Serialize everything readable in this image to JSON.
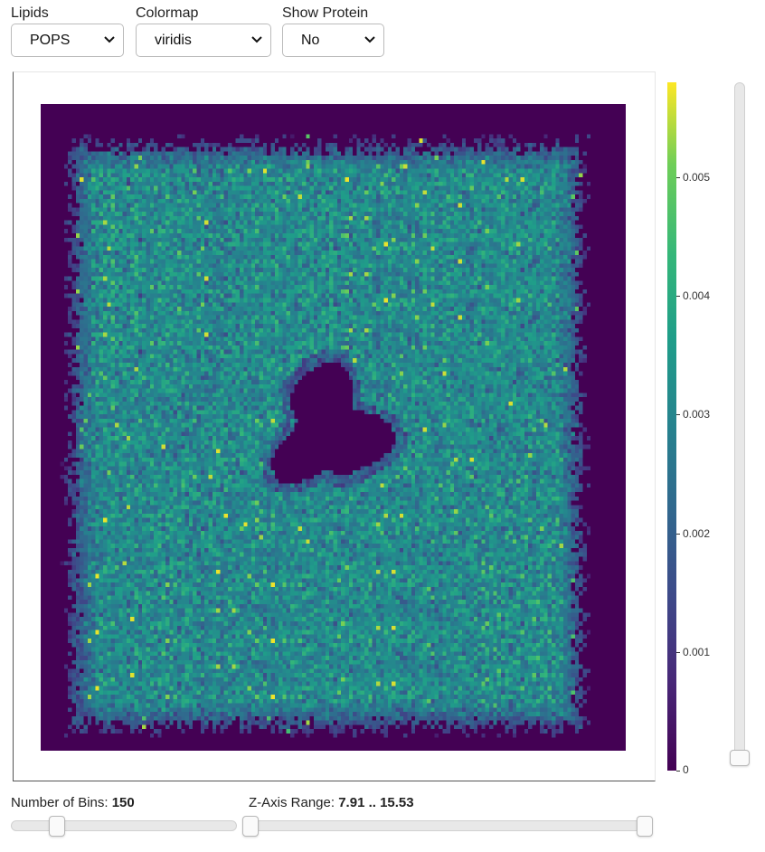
{
  "controls": {
    "lipids": {
      "label": "Lipids",
      "value": "POPS"
    },
    "colormap": {
      "label": "Colormap",
      "value": "viridis"
    },
    "show_protein": {
      "label": "Show Protein",
      "value": "No"
    }
  },
  "sliders": {
    "bins": {
      "label": "Number of Bins:",
      "value": "150",
      "fraction": 0.18
    },
    "z_range": {
      "label": "Z-Axis Range:",
      "value": "7.91 .. 15.53",
      "low_fraction": 0.0,
      "high_fraction": 1.0
    },
    "vertical": {
      "fraction": 0.0
    }
  },
  "chart_data": {
    "type": "heatmap",
    "title": "",
    "xlabel": "",
    "ylabel": "",
    "bins": 150,
    "colormap": "viridis",
    "colorbar": {
      "min": 0,
      "max": 0.0058,
      "ticks": [
        0,
        0.001,
        0.002,
        0.003,
        0.004,
        0.005
      ],
      "tick_labels": [
        "0",
        "0.001",
        "0.002",
        "0.003",
        "0.004",
        "0.005"
      ]
    },
    "occupied_region": {
      "x_from": 0.05,
      "x_to": 0.92,
      "y_from": 0.06,
      "y_to": 0.96
    },
    "mean_density": 0.0031,
    "hole": {
      "center_x": 0.49,
      "center_y": 0.5,
      "radius": 0.085
    },
    "density_note": ""
  }
}
